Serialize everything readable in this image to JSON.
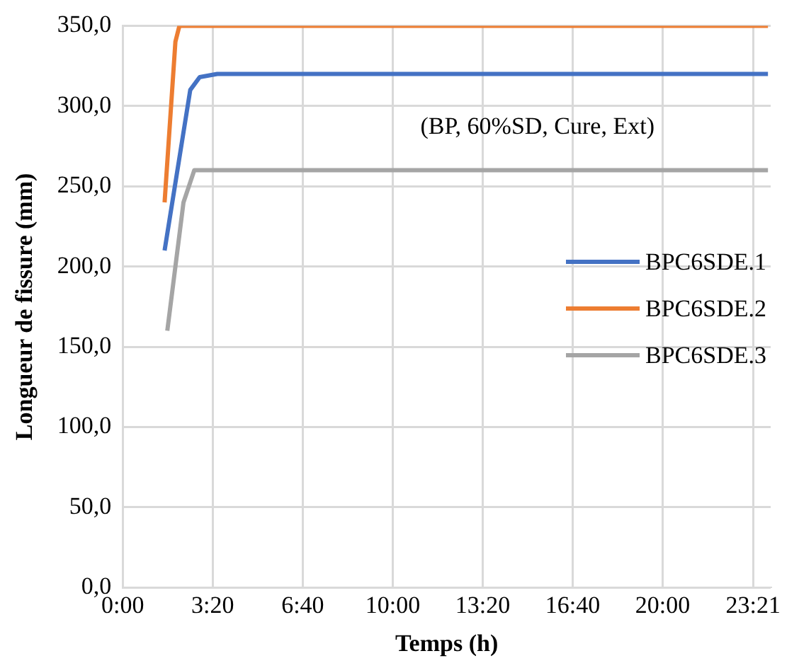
{
  "chart_data": {
    "type": "line",
    "xlabel": "Temps (h)",
    "ylabel": "Longueur de fissure (mm)",
    "annotations": [
      "(BP, 60%SD, Cure, Ext)"
    ],
    "xlim": [
      0,
      24
    ],
    "xticks": [
      {
        "value": 0,
        "label": "0:00"
      },
      {
        "value": 3.333,
        "label": "3:20"
      },
      {
        "value": 6.667,
        "label": "6:40"
      },
      {
        "value": 10,
        "label": "10:00"
      },
      {
        "value": 13.333,
        "label": "13:20"
      },
      {
        "value": 16.667,
        "label": "16:40"
      },
      {
        "value": 20,
        "label": "20:00"
      },
      {
        "value": 23.35,
        "label": "23:21"
      }
    ],
    "ylim": [
      0,
      350
    ],
    "yticks": [
      {
        "value": 0,
        "label": "0,0"
      },
      {
        "value": 50,
        "label": "50,0"
      },
      {
        "value": 100,
        "label": "100,0"
      },
      {
        "value": 150,
        "label": "150,0"
      },
      {
        "value": 200,
        "label": "200,0"
      },
      {
        "value": 250,
        "label": "250,0"
      },
      {
        "value": 300,
        "label": "300,0"
      },
      {
        "value": 350,
        "label": "350,0"
      }
    ],
    "grid": true,
    "legend": "right",
    "marker": "none",
    "line_style": "solid",
    "series": [
      {
        "name": "BPC6SDE.1",
        "color": "#4472c4",
        "x": [
          1.55,
          2.5,
          2.85,
          3.5,
          23.9
        ],
        "values": [
          210,
          310,
          318,
          320,
          320
        ]
      },
      {
        "name": "BPC6SDE.2",
        "color": "#ed7d31",
        "x": [
          1.55,
          1.95,
          2.1,
          23.9
        ],
        "values": [
          240,
          340,
          350,
          350
        ]
      },
      {
        "name": "BPC6SDE.3",
        "color": "#a5a5a5",
        "x": [
          1.65,
          2.25,
          2.65,
          23.9
        ],
        "values": [
          160,
          240,
          260,
          260
        ]
      }
    ]
  }
}
